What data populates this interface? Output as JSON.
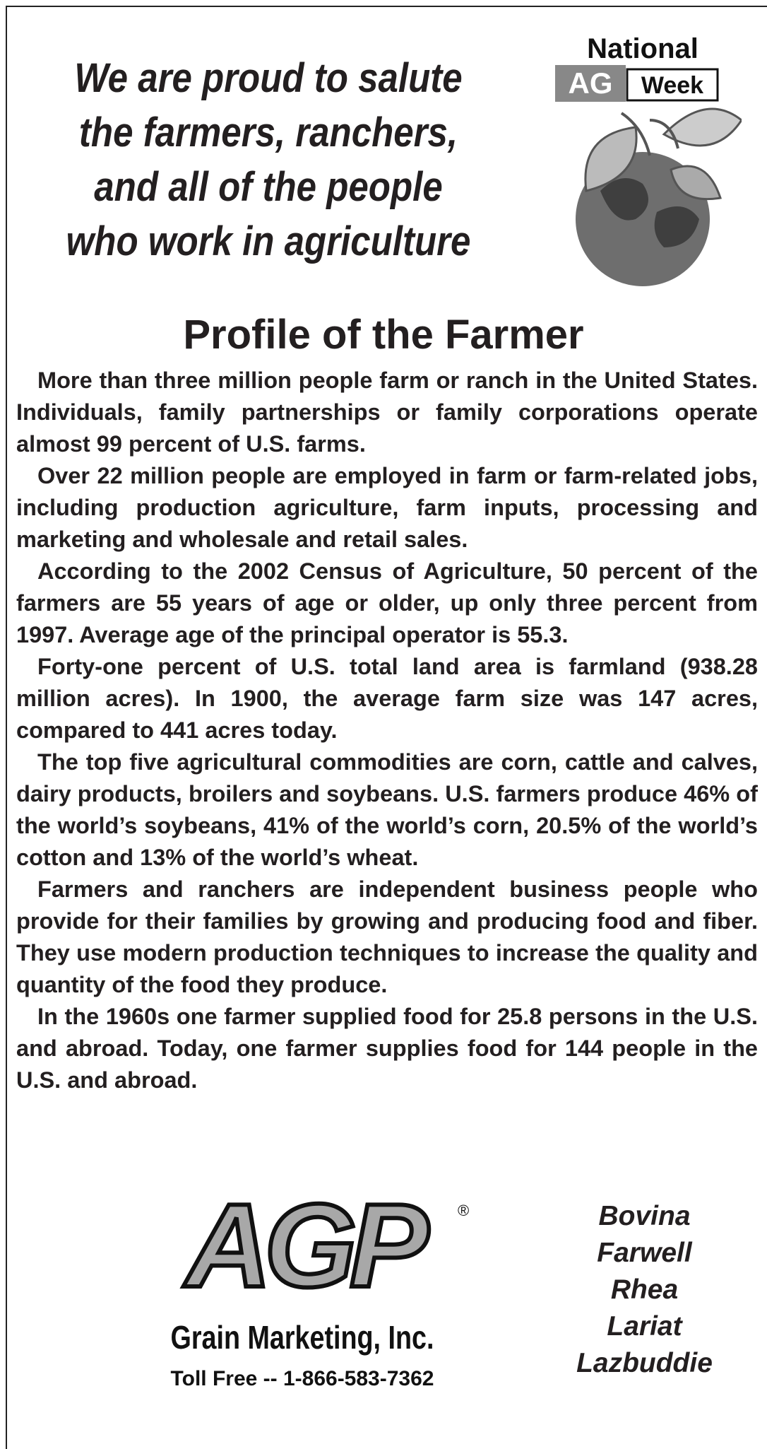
{
  "header": {
    "lines": [
      "We are proud to salute",
      "the farmers, ranchers,",
      "and all of the people",
      "who work in agriculture"
    ]
  },
  "badge": {
    "line1": "National",
    "ag": "AG",
    "week": "Week"
  },
  "article": {
    "title": "Profile of the Farmer",
    "paragraphs": [
      "More than three million people farm or ranch in the United States. Individuals, family partnerships or family corporations operate almost 99 percent of U.S. farms.",
      "Over 22 million people are employed in farm or farm-related jobs, including production agriculture, farm inputs, processing and marketing and wholesale and retail sales.",
      "According to the 2002 Census of Agriculture, 50 percent of the farmers are 55 years of age or older, up only three percent from 1997. Average age of the principal operator is 55.3.",
      "Forty-one percent of U.S. total land area is farmland (938.28 million acres). In 1900, the average farm size was 147 acres, compared to 441 acres today.",
      "The top five agricultural commodities are corn, cattle and calves, dairy products, broilers and soybeans. U.S. farmers produce 46% of the world’s soybeans, 41% of the world’s corn, 20.5% of the world’s cotton and 13% of the world’s wheat.",
      "Farmers and ranchers are independent business people who provide for their families by growing and producing food and fiber. They use modern production techniques to increase the quality and quantity of the food they produce.",
      "In the 1960s one farmer supplied food for 25.8 persons in the U.S. and abroad. Today, one farmer supplies food for 144 people in the U.S. and abroad."
    ]
  },
  "sponsor": {
    "logo": "AGP",
    "registered": "®",
    "company": "Grain Marketing, Inc.",
    "phone": "Toll Free -- 1-866-583-7362",
    "locations": [
      "Bovina",
      "Farwell",
      "Rhea",
      "Lariat",
      "Lazbuddie"
    ]
  }
}
